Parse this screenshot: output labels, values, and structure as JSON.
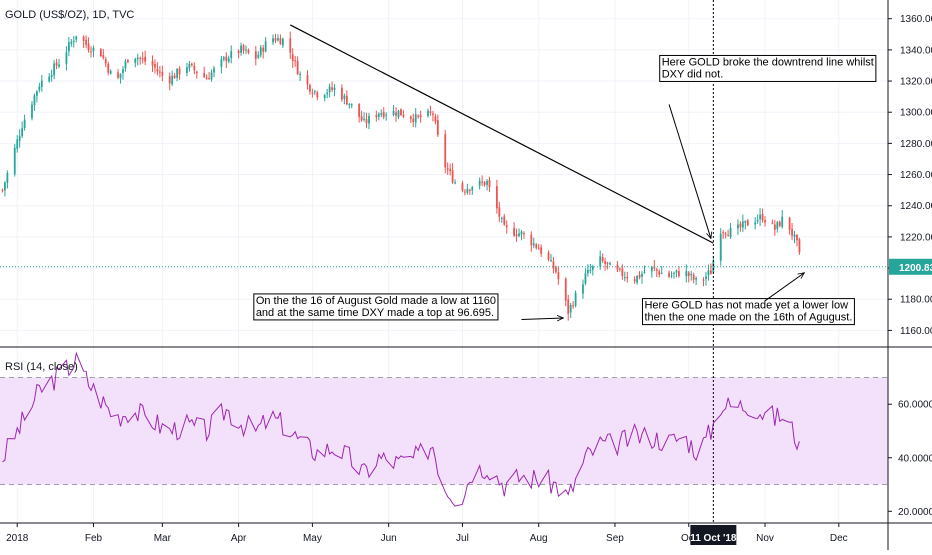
{
  "chart_data": [
    {
      "type": "candlestick",
      "title": "GOLD (US$/OZ), 1D, TVC",
      "last_price_label": "1200.83",
      "last_price": 1200.83,
      "ylim": [
        1150,
        1372
      ],
      "y_ticks": [
        "1160.00",
        "1180.00",
        "1200.00",
        "1220.00",
        "1240.00",
        "1260.00",
        "1280.00",
        "1300.00",
        "1320.00",
        "1340.00",
        "1360.00"
      ],
      "x_ticks": [
        {
          "label": "2018",
          "day": 1
        },
        {
          "label": "Feb",
          "day": 32
        },
        {
          "label": "Mar",
          "day": 60
        },
        {
          "label": "Apr",
          "day": 91
        },
        {
          "label": "May",
          "day": 121
        },
        {
          "label": "Jun",
          "day": 152
        },
        {
          "label": "Jul",
          "day": 182
        },
        {
          "label": "Aug",
          "day": 213
        },
        {
          "label": "Sep",
          "day": 244
        },
        {
          "label": "Oct",
          "day": 274
        },
        {
          "label": "Nov",
          "day": 305
        },
        {
          "label": "Dec",
          "day": 335
        }
      ],
      "x_range": [
        -6,
        355
      ],
      "crosshair": {
        "label": "11 Oct '18",
        "day": 284
      },
      "price_path": [
        {
          "day": -5,
          "price": 1250
        },
        {
          "day": 3,
          "price": 1292
        },
        {
          "day": 10,
          "price": 1318
        },
        {
          "day": 18,
          "price": 1332
        },
        {
          "day": 25,
          "price": 1350
        },
        {
          "day": 30,
          "price": 1342
        },
        {
          "day": 35,
          "price": 1338
        },
        {
          "day": 41,
          "price": 1318
        },
        {
          "day": 47,
          "price": 1338
        },
        {
          "day": 56,
          "price": 1330
        },
        {
          "day": 62,
          "price": 1320
        },
        {
          "day": 70,
          "price": 1330
        },
        {
          "day": 78,
          "price": 1322
        },
        {
          "day": 86,
          "price": 1335
        },
        {
          "day": 92,
          "price": 1340
        },
        {
          "day": 98,
          "price": 1335
        },
        {
          "day": 104,
          "price": 1348
        },
        {
          "day": 110,
          "price": 1346
        },
        {
          "day": 117,
          "price": 1320
        },
        {
          "day": 123,
          "price": 1312
        },
        {
          "day": 130,
          "price": 1315
        },
        {
          "day": 136,
          "price": 1306
        },
        {
          "day": 142,
          "price": 1293
        },
        {
          "day": 148,
          "price": 1300
        },
        {
          "day": 156,
          "price": 1300
        },
        {
          "day": 163,
          "price": 1296
        },
        {
          "day": 170,
          "price": 1299
        },
        {
          "day": 174,
          "price": 1268
        },
        {
          "day": 181,
          "price": 1250
        },
        {
          "day": 186,
          "price": 1253
        },
        {
          "day": 192,
          "price": 1255
        },
        {
          "day": 199,
          "price": 1225
        },
        {
          "day": 206,
          "price": 1222
        },
        {
          "day": 213,
          "price": 1213
        },
        {
          "day": 220,
          "price": 1198
        },
        {
          "day": 225,
          "price": 1172
        },
        {
          "day": 232,
          "price": 1195
        },
        {
          "day": 238,
          "price": 1205
        },
        {
          "day": 244,
          "price": 1198
        },
        {
          "day": 252,
          "price": 1193
        },
        {
          "day": 258,
          "price": 1200
        },
        {
          "day": 266,
          "price": 1195
        },
        {
          "day": 272,
          "price": 1198
        },
        {
          "day": 278,
          "price": 1190
        },
        {
          "day": 283,
          "price": 1198
        },
        {
          "day": 287,
          "price": 1225
        },
        {
          "day": 292,
          "price": 1223
        },
        {
          "day": 299,
          "price": 1230
        },
        {
          "day": 304,
          "price": 1233
        },
        {
          "day": 309,
          "price": 1225
        },
        {
          "day": 313,
          "price": 1233
        },
        {
          "day": 318,
          "price": 1215
        },
        {
          "day": 320,
          "price": 1200
        }
      ],
      "trend_line": {
        "from": {
          "day": 112,
          "price": 1356
        },
        "to": {
          "day": 284,
          "price": 1216
        }
      },
      "annotations": [
        {
          "lines": [
            "Here GOLD broke the downtrend line whilst",
            "DXY did not."
          ],
          "text_at": {
            "day": 263,
            "price": 1330
          },
          "arrow_from": {
            "day": 266,
            "price": 1305
          },
          "arrow_to": {
            "day": 283,
            "price": 1219
          }
        },
        {
          "lines": [
            "On the the 16 of August Gold made a low at 1160",
            "and at the same time DXY made a top at 96.695."
          ],
          "text_at": {
            "day": 98,
            "price": 1177
          },
          "arrow_from": {
            "day": 206,
            "price": 1167
          },
          "arrow_to": {
            "day": 223,
            "price": 1168
          }
        },
        {
          "lines": [
            "Here GOLD has not made yet a lower low",
            "then the one made on the 16th of Agugust."
          ],
          "text_at": {
            "day": 256,
            "price": 1174
          },
          "arrow_from": {
            "day": 305,
            "price": 1179
          },
          "arrow_to": {
            "day": 321,
            "price": 1197
          }
        }
      ],
      "colors": {
        "up": "#26a69a",
        "down": "#ef5350",
        "last_price": "#26a69a",
        "trend_line": "#000000"
      }
    },
    {
      "type": "line",
      "title": "RSI (14, close)",
      "ylim": [
        16,
        81
      ],
      "y_ticks": [
        "20.0000",
        "40.0000",
        "60.0000"
      ],
      "band": [
        30,
        70
      ],
      "series_color": "#9c27b0",
      "band_fill": "#f3e0fb",
      "values_path": [
        {
          "day": -5,
          "price": 40
        },
        {
          "day": 3,
          "price": 53
        },
        {
          "day": 10,
          "price": 65
        },
        {
          "day": 18,
          "price": 71
        },
        {
          "day": 25,
          "price": 76
        },
        {
          "day": 30,
          "price": 68
        },
        {
          "day": 35,
          "price": 62
        },
        {
          "day": 41,
          "price": 55
        },
        {
          "day": 47,
          "price": 58
        },
        {
          "day": 56,
          "price": 54
        },
        {
          "day": 62,
          "price": 50
        },
        {
          "day": 70,
          "price": 52
        },
        {
          "day": 78,
          "price": 50
        },
        {
          "day": 86,
          "price": 58
        },
        {
          "day": 92,
          "price": 53
        },
        {
          "day": 98,
          "price": 50
        },
        {
          "day": 104,
          "price": 55
        },
        {
          "day": 110,
          "price": 52
        },
        {
          "day": 117,
          "price": 45
        },
        {
          "day": 123,
          "price": 42
        },
        {
          "day": 130,
          "price": 44
        },
        {
          "day": 136,
          "price": 40
        },
        {
          "day": 142,
          "price": 34
        },
        {
          "day": 148,
          "price": 40
        },
        {
          "day": 156,
          "price": 38
        },
        {
          "day": 163,
          "price": 40
        },
        {
          "day": 170,
          "price": 45
        },
        {
          "day": 174,
          "price": 30
        },
        {
          "day": 181,
          "price": 24
        },
        {
          "day": 186,
          "price": 35
        },
        {
          "day": 192,
          "price": 37
        },
        {
          "day": 199,
          "price": 30
        },
        {
          "day": 206,
          "price": 33
        },
        {
          "day": 213,
          "price": 32
        },
        {
          "day": 220,
          "price": 30
        },
        {
          "day": 225,
          "price": 25
        },
        {
          "day": 232,
          "price": 40
        },
        {
          "day": 238,
          "price": 45
        },
        {
          "day": 244,
          "price": 45
        },
        {
          "day": 252,
          "price": 48
        },
        {
          "day": 258,
          "price": 48
        },
        {
          "day": 266,
          "price": 46
        },
        {
          "day": 272,
          "price": 48
        },
        {
          "day": 278,
          "price": 42
        },
        {
          "day": 283,
          "price": 50
        },
        {
          "day": 287,
          "price": 60
        },
        {
          "day": 292,
          "price": 59
        },
        {
          "day": 299,
          "price": 60
        },
        {
          "day": 304,
          "price": 57
        },
        {
          "day": 309,
          "price": 55
        },
        {
          "day": 313,
          "price": 56
        },
        {
          "day": 318,
          "price": 47
        },
        {
          "day": 320,
          "price": 38
        }
      ]
    }
  ]
}
